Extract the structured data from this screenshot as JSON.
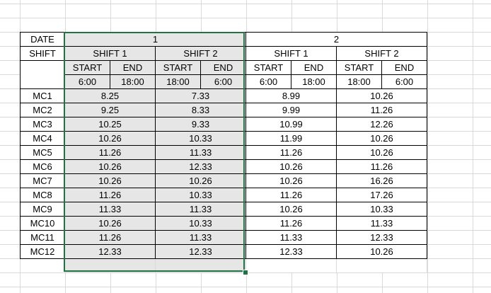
{
  "header": {
    "date_label": "DATE",
    "shift_label": "SHIFT",
    "day1": "1",
    "day2": "2",
    "shift1": "SHIFT 1",
    "shift2": "SHIFT 2",
    "start": "START",
    "end": "END",
    "times": [
      "6:00",
      "18:00",
      "18:00",
      "6:00",
      "6:00",
      "18:00",
      "18:00",
      "6:00"
    ]
  },
  "rows": [
    {
      "mc": "MC1",
      "d1s1": "8.25",
      "d1s2": "7.33",
      "d2s1": "8.99",
      "d2s2": "10.26"
    },
    {
      "mc": "MC2",
      "d1s1": "9.25",
      "d1s2": "8.33",
      "d2s1": "9.99",
      "d2s2": "11.26"
    },
    {
      "mc": "MC3",
      "d1s1": "10.25",
      "d1s2": "9.33",
      "d2s1": "10.99",
      "d2s2": "12.26"
    },
    {
      "mc": "MC4",
      "d1s1": "10.26",
      "d1s2": "10.33",
      "d2s1": "11.99",
      "d2s2": "10.26"
    },
    {
      "mc": "MC5",
      "d1s1": "11.26",
      "d1s2": "11.33",
      "d2s1": "11.26",
      "d2s2": "10.26"
    },
    {
      "mc": "MC6",
      "d1s1": "10.26",
      "d1s2": "12.33",
      "d2s1": "10.26",
      "d2s2": "11.26"
    },
    {
      "mc": "MC7",
      "d1s1": "10.26",
      "d1s2": "10.26",
      "d2s1": "10.26",
      "d2s2": "16.26"
    },
    {
      "mc": "MC8",
      "d1s1": "11.26",
      "d1s2": "10.33",
      "d2s1": "11.26",
      "d2s2": "17.26"
    },
    {
      "mc": "MC9",
      "d1s1": "11.33",
      "d1s2": "11.33",
      "d2s1": "10.26",
      "d2s2": "10.33"
    },
    {
      "mc": "MC10",
      "d1s1": "10.26",
      "d1s2": "10.33",
      "d2s1": "11.26",
      "d2s2": "11.33"
    },
    {
      "mc": "MC11",
      "d1s1": "11.26",
      "d1s2": "11.33",
      "d2s1": "11.33",
      "d2s2": "12.33"
    },
    {
      "mc": "MC12",
      "d1s1": "12.33",
      "d1s2": "12.33",
      "d2s1": "12.33",
      "d2s2": "10.26"
    }
  ],
  "colors": {
    "selection_border": "#217346",
    "selection_fill": "#e6e6e6",
    "gridline": "#d9d9d9"
  }
}
